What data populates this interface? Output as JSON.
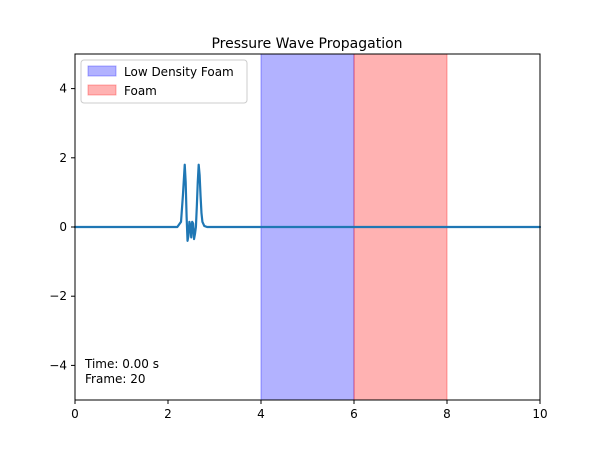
{
  "chart_data": {
    "type": "line",
    "title": "Pressure Wave Propagation",
    "xlabel": "",
    "ylabel": "",
    "xlim": [
      0,
      10
    ],
    "ylim": [
      -5,
      5
    ],
    "x_ticks": [
      0,
      2,
      4,
      6,
      8,
      10
    ],
    "x_tick_labels": [
      "0",
      "2",
      "4",
      "6",
      "8",
      "10"
    ],
    "y_ticks": [
      -4,
      -2,
      0,
      2,
      4
    ],
    "y_tick_labels": [
      "−4",
      "−2",
      "0",
      "2",
      "4"
    ],
    "grid": false,
    "legend_position": "top-left",
    "regions": [
      {
        "name": "Low Density Foam",
        "x_start": 4,
        "x_end": 6,
        "color": "#0000ff",
        "alpha": 0.3
      },
      {
        "name": "Foam",
        "x_start": 6,
        "x_end": 8,
        "color": "#ff0000",
        "alpha": 0.3
      }
    ],
    "series": [
      {
        "color": "#1f77b4",
        "x": [
          0,
          2.0,
          2.2,
          2.28,
          2.32,
          2.36,
          2.38,
          2.4,
          2.42,
          2.44,
          2.46,
          2.48,
          2.5,
          2.52,
          2.54,
          2.56,
          2.58,
          2.6,
          2.62,
          2.64,
          2.66,
          2.68,
          2.7,
          2.72,
          2.74,
          2.78,
          2.84,
          3.0,
          10
        ],
        "y": [
          0,
          0,
          0,
          0.15,
          0.9,
          1.8,
          1.3,
          0.3,
          -0.4,
          -0.25,
          0.15,
          0.05,
          -0.3,
          0.15,
          0.1,
          -0.35,
          -0.2,
          0.0,
          0.6,
          1.3,
          1.8,
          1.5,
          0.9,
          0.4,
          0.15,
          0.03,
          0,
          0,
          0
        ]
      }
    ],
    "annotations": [
      {
        "text": "Time: 0.00 s",
        "x": 0.25,
        "y": -3.9
      },
      {
        "text": "Frame: 20",
        "x": 0.25,
        "y": -4.45
      }
    ]
  }
}
